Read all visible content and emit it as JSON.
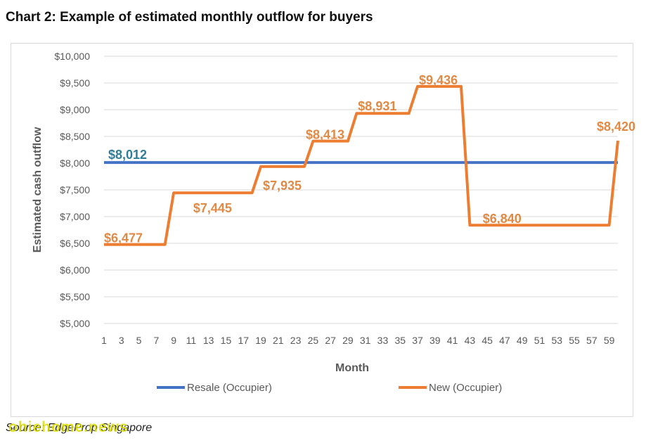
{
  "page": {
    "title": "Chart 2: Example of estimated monthly outflow for buyers",
    "source": "Source: EdgeProp Singapore",
    "watermark": "ohiehome.news"
  },
  "colors": {
    "resale": "#4472C4",
    "new": "#ED7D31",
    "resale_label": "#2E7D99",
    "new_label": "#E08A45",
    "grid": "#d9d9d9",
    "axis_text": "#595959"
  },
  "chart_data": {
    "type": "line",
    "xlabel": "Month",
    "ylabel": "Estimated cash outflow",
    "ylim": [
      5000,
      10000
    ],
    "xlim": [
      1,
      60
    ],
    "yticks": [
      5000,
      5500,
      6000,
      6500,
      7000,
      7500,
      8000,
      8500,
      9000,
      9500,
      10000
    ],
    "ytick_labels": [
      "$5,000",
      "$5,500",
      "$6,000",
      "$6,500",
      "$7,000",
      "$7,500",
      "$8,000",
      "$8,500",
      "$9,000",
      "$9,500",
      "$10,000"
    ],
    "xticks": [
      1,
      3,
      5,
      7,
      9,
      11,
      13,
      15,
      17,
      19,
      21,
      23,
      25,
      27,
      29,
      31,
      33,
      35,
      37,
      39,
      41,
      43,
      45,
      47,
      49,
      51,
      53,
      55,
      57,
      59
    ],
    "legend_position": "bottom",
    "grid": true,
    "series": [
      {
        "name": "Resale (Occupier)",
        "color": "#4472C4",
        "x": [
          1,
          60
        ],
        "y": [
          8012,
          8012
        ]
      },
      {
        "name": "New (Occupier)",
        "color": "#ED7D31",
        "x": [
          1,
          8,
          9,
          18,
          19,
          24,
          25,
          29,
          30,
          36,
          37,
          42,
          43,
          59,
          60
        ],
        "y": [
          6477,
          6477,
          7445,
          7445,
          7935,
          7935,
          8413,
          8413,
          8931,
          8931,
          9436,
          9436,
          6840,
          6840,
          8420
        ]
      }
    ],
    "annotations": [
      {
        "text": "$8,012",
        "x": 1,
        "y": 8012,
        "series": "Resale (Occupier)"
      },
      {
        "text": "$6,477",
        "x": 1,
        "y": 6477,
        "series": "New (Occupier)"
      },
      {
        "text": "$7,445",
        "x": 11,
        "y": 7445,
        "series": "New (Occupier)"
      },
      {
        "text": "$7,935",
        "x": 19,
        "y": 7935,
        "series": "New (Occupier)"
      },
      {
        "text": "$8,413",
        "x": 24,
        "y": 8413,
        "series": "New (Occupier)"
      },
      {
        "text": "$8,931",
        "x": 30,
        "y": 8931,
        "series": "New (Occupier)"
      },
      {
        "text": "$9,436",
        "x": 37,
        "y": 9436,
        "series": "New (Occupier)"
      },
      {
        "text": "$6,840",
        "x": 44,
        "y": 6840,
        "series": "New (Occupier)"
      },
      {
        "text": "$8,420",
        "x": 60,
        "y": 8420,
        "series": "New (Occupier)"
      }
    ]
  }
}
